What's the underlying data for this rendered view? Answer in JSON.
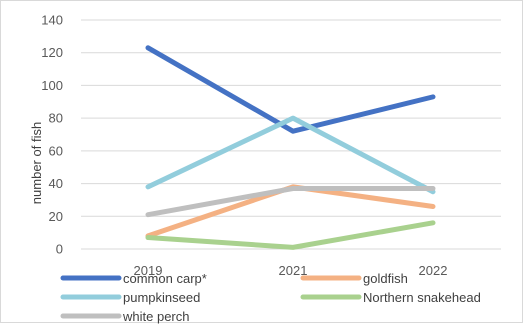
{
  "chart_data": {
    "type": "line",
    "title": "",
    "xlabel": "",
    "ylabel": "number of fish",
    "categories": [
      "2019",
      "2021",
      "2022"
    ],
    "ylim": [
      0,
      140
    ],
    "yticks": [
      0,
      20,
      40,
      60,
      80,
      100,
      120,
      140
    ],
    "grid": "horizontal",
    "legend_position": "bottom",
    "series": [
      {
        "name": "common carp*",
        "color": "#4472c4",
        "values": [
          123,
          72,
          93
        ]
      },
      {
        "name": "goldfish",
        "color": "#f4b183",
        "values": [
          8,
          38,
          26
        ]
      },
      {
        "name": "pumpkinseed",
        "color": "#92cddc",
        "values": [
          38,
          80,
          35
        ]
      },
      {
        "name": "Northern snakehead",
        "color": "#a9d18e",
        "values": [
          7,
          1,
          16
        ]
      },
      {
        "name": "white perch",
        "color": "#bfbfbf",
        "values": [
          21,
          37,
          37
        ]
      }
    ]
  }
}
